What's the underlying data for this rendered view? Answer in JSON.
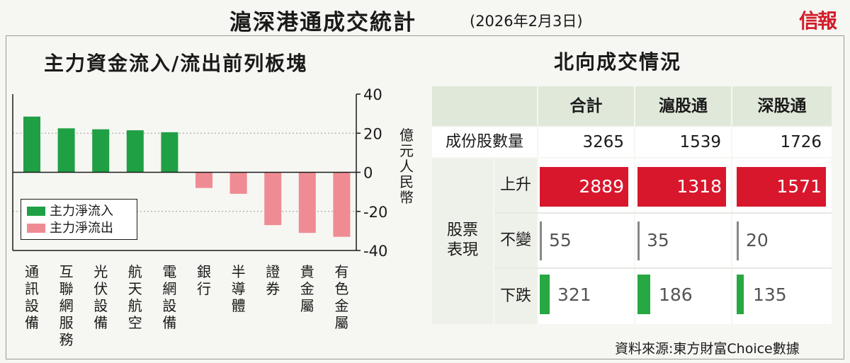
{
  "header": {
    "title": "滬深港通成交統計",
    "date": "(2026年2月3日)",
    "logo": "信報"
  },
  "left_panel": {
    "title": "主力資金流入/流出前列板塊",
    "y_unit": "億元人民幣",
    "legend": {
      "inflow": "主力淨流入",
      "outflow": "主力淨流出"
    }
  },
  "right_panel": {
    "title": "北向成交情況",
    "columns": [
      "合計",
      "滬股通",
      "深股通"
    ],
    "rows": {
      "constituents_label": "成份股數量",
      "performance_label": "股票表現",
      "up_label": "上升",
      "flat_label": "不變",
      "down_label": "下跌"
    },
    "values": {
      "constituents": [
        "3265",
        "1539",
        "1726"
      ],
      "up": [
        "2889",
        "1318",
        "1571"
      ],
      "flat": [
        "55",
        "35",
        "20"
      ],
      "down": [
        "321",
        "186",
        "135"
      ]
    },
    "colors": {
      "up": "#d8172c",
      "flat": "#888888",
      "down": "#27a843"
    }
  },
  "source": "資料來源:東方財富Choice數據",
  "chart_data": {
    "type": "bar",
    "categories": [
      "通訊設備",
      "互聯網服務",
      "光伏設備",
      "航天航空",
      "電網設備",
      "銀行",
      "半導體",
      "證券",
      "貴金屬",
      "有色金屬"
    ],
    "values": [
      28.5,
      22.5,
      22,
      21.5,
      20.5,
      -8,
      -11,
      -27,
      -31,
      -33
    ],
    "ylim": [
      -40,
      40
    ],
    "yticks": [
      40,
      20,
      0,
      -20,
      -40
    ],
    "ylabel": "億元人民幣",
    "legend": [
      "主力淨流入",
      "主力淨流出"
    ],
    "colors": {
      "inflow": "#1fa045",
      "outflow": "#ef8c93"
    },
    "grid": true,
    "legend_position": "bottom-left"
  }
}
